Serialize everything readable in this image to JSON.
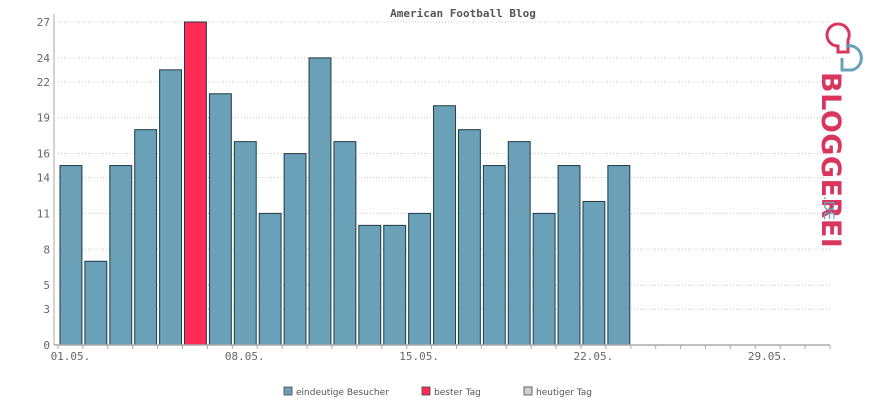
{
  "chart_data": {
    "type": "bar",
    "title": "American Football Blog",
    "days": 31,
    "x_tick_labels": [
      {
        "day": 1,
        "label": "01.05."
      },
      {
        "day": 8,
        "label": "08.05."
      },
      {
        "day": 15,
        "label": "15.05."
      },
      {
        "day": 22,
        "label": "22.05."
      },
      {
        "day": 29,
        "label": "29.05."
      }
    ],
    "y_ticks": [
      0,
      3,
      5,
      8,
      11,
      14,
      16,
      19,
      22,
      24,
      27
    ],
    "ylim": [
      0,
      27
    ],
    "values": [
      15,
      7,
      15,
      18,
      23,
      27,
      21,
      17,
      11,
      16,
      24,
      17,
      10,
      10,
      11,
      20,
      18,
      15,
      17,
      11,
      15,
      12,
      15
    ],
    "highlight_index": 5,
    "colors": {
      "bar": "#6aa0b8",
      "best": "#ff2a55",
      "today": "#d0d0d0",
      "bar_stroke": "#1e3a44",
      "grid": "#c8c8c8",
      "axis": "#aaaaaa"
    },
    "legend": [
      {
        "label": "eindeutige Besucher",
        "color": "#6aa0b8"
      },
      {
        "label": "bester Tag",
        "color": "#ff2a55"
      },
      {
        "label": "heutiger Tag",
        "color": "#d0d0d0"
      }
    ],
    "legend_position": "bottom-center",
    "grid": true
  },
  "brand": {
    "name": "BLOGGEREI",
    "suffix": ".DE",
    "logo": "bloggerei-logo-icon"
  }
}
